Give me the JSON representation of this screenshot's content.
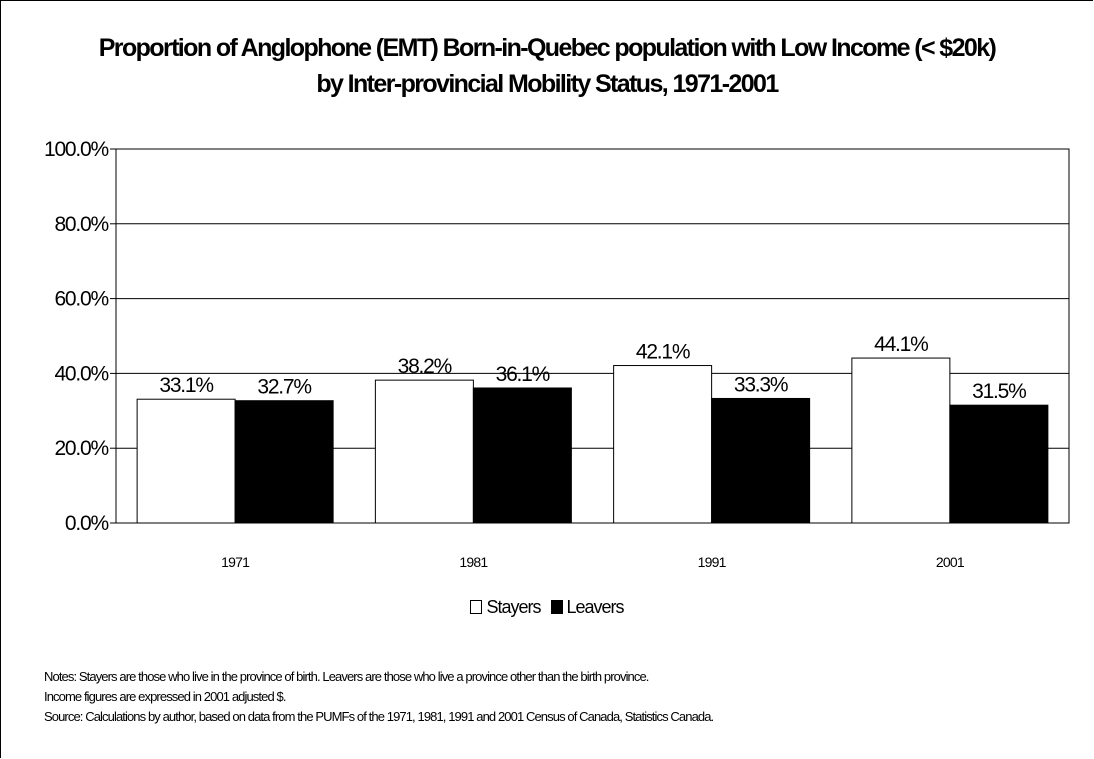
{
  "chart_data": {
    "type": "bar",
    "title_lines": [
      "Proportion of Anglophone (EMT) Born-in-Quebec population with Low Income (< $20k)",
      "by Inter-provincial Mobility Status, 1971-2001"
    ],
    "categories": [
      "1971",
      "1981",
      "1991",
      "2001"
    ],
    "series": [
      {
        "name": "Stayers",
        "values": [
          33.1,
          38.2,
          42.1,
          44.1
        ],
        "labels": [
          "33.1%",
          "38.2%",
          "42.1%",
          "44.1%"
        ],
        "color": "#ffffff"
      },
      {
        "name": "Leavers",
        "values": [
          32.7,
          36.1,
          33.3,
          31.5
        ],
        "labels": [
          "32.7%",
          "36.1%",
          "33.3%",
          "31.5%"
        ],
        "color": "#000000"
      }
    ],
    "y_ticks": [
      "0.0%",
      "20.0%",
      "40.0%",
      "60.0%",
      "80.0%",
      "100.0%"
    ],
    "ylim": [
      0,
      100
    ],
    "y_tick_values": [
      0,
      20,
      40,
      60,
      80,
      100
    ],
    "grid": true,
    "legend_position": "bottom",
    "xlabel": "",
    "ylabel": ""
  },
  "notes": [
    "Notes:  Stayers are those who live in the province of birth.  Leavers are those who live a province other than the birth province.",
    "Income figures are expressed in 2001 adjusted $.",
    "Source:  Calculations by author, based on data from the PUMFs of the 1971, 1981, 1991 and 2001 Census of Canada, Statistics Canada."
  ]
}
